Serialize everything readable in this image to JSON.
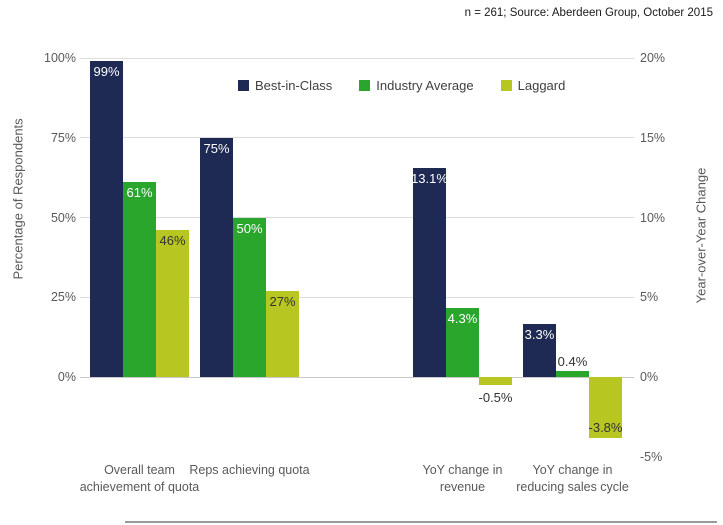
{
  "source_note": "n = 261; Source: Aberdeen Group, October 2015",
  "chart_data": {
    "type": "bar",
    "title": "",
    "source_note": "n = 261; Source: Aberdeen Group, October 2015",
    "legend_position": "top-center",
    "grid": true,
    "left_axis": {
      "label": "Percentage of Respondents",
      "ticks": [
        {
          "value": 100,
          "label": "100%"
        },
        {
          "value": 75,
          "label": "75%"
        },
        {
          "value": 50,
          "label": "50%"
        },
        {
          "value": 25,
          "label": "25%"
        },
        {
          "value": 0,
          "label": "0%"
        }
      ],
      "range": [
        0,
        100
      ]
    },
    "right_axis": {
      "label": "Year-over-Year  Change",
      "ticks": [
        {
          "value": 20,
          "label": "20%"
        },
        {
          "value": 15,
          "label": "15%"
        },
        {
          "value": 10,
          "label": "10%"
        },
        {
          "value": 5,
          "label": "5%"
        },
        {
          "value": 0,
          "label": "0%"
        },
        {
          "value": -5,
          "label": "-5%"
        }
      ],
      "range": [
        -5,
        20
      ]
    },
    "series": [
      {
        "name": "Best-in-Class",
        "color": "#1E2A54"
      },
      {
        "name": "Industry Average",
        "color": "#2AA62D"
      },
      {
        "name": "Laggard",
        "color": "#B7C621"
      }
    ],
    "groups": [
      {
        "category": "Overall team achievement of quota",
        "axis": "left",
        "values": [
          99,
          61,
          46
        ],
        "labels": [
          "99%",
          "61%",
          "46%"
        ]
      },
      {
        "category": "Reps achieving quota",
        "axis": "left",
        "values": [
          75,
          50,
          27
        ],
        "labels": [
          "75%",
          "50%",
          "27%"
        ]
      },
      {
        "category": "YoY change in revenue",
        "axis": "right",
        "values": [
          13.1,
          4.3,
          -0.5
        ],
        "labels": [
          "13.1%",
          "4.3%",
          "-0.5%"
        ]
      },
      {
        "category": "YoY change in reducing sales cycle",
        "axis": "right",
        "values": [
          3.3,
          0.4,
          -3.8
        ],
        "labels": [
          "3.3%",
          "0.4%",
          "-3.8%"
        ]
      }
    ],
    "colors": {
      "grid": "#dcdcdc",
      "axis_text": "#595959",
      "value_label_light": "#ffffff",
      "value_label_dark": "#333333"
    }
  }
}
